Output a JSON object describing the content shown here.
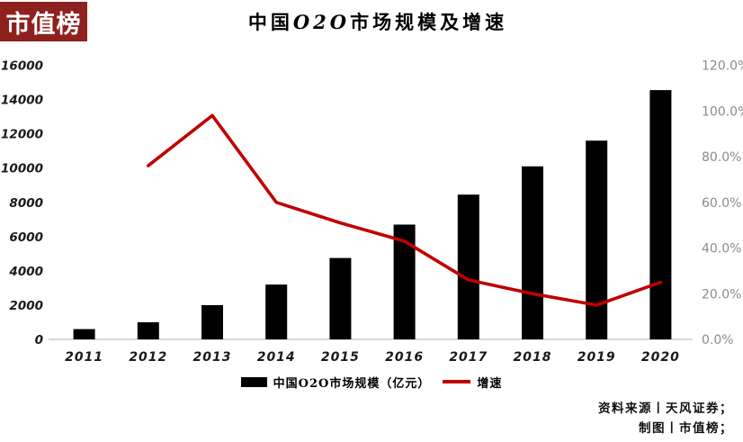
{
  "logo": {
    "text": "市值榜",
    "bg_color": "#8e211d",
    "text_color": "#ffffff"
  },
  "header": {
    "title": "中国O2O市场规模及增速"
  },
  "chart_data": {
    "type": "bar",
    "subtype": "combo-bar-line-dual-axis",
    "title": "中国O2O市场规模及增速",
    "categories": [
      "2011",
      "2012",
      "2013",
      "2014",
      "2015",
      "2016",
      "2017",
      "2018",
      "2019",
      "2020"
    ],
    "series": [
      {
        "name": "中国O2O市场规模（亿元）",
        "type": "bar",
        "axis": "left",
        "color": "#000000",
        "values": [
          600,
          1000,
          2000,
          3200,
          4750,
          6700,
          8450,
          10100,
          11600,
          14550
        ]
      },
      {
        "name": "增速",
        "type": "line",
        "axis": "right",
        "color": "#c00000",
        "values": [
          null,
          0.76,
          0.98,
          0.6,
          0.51,
          0.43,
          0.26,
          0.2,
          0.15,
          0.25
        ]
      }
    ],
    "left_axis": {
      "min": 0,
      "max": 16000,
      "step": 2000,
      "tick_labels": [
        "0",
        "2000",
        "4000",
        "6000",
        "8000",
        "10000",
        "12000",
        "14000",
        "16000"
      ]
    },
    "right_axis": {
      "min": 0,
      "max": 1.2,
      "step": 0.2,
      "tick_labels": [
        "0.0%",
        "20.0%",
        "40.0%",
        "60.0%",
        "80.0%",
        "100.0%",
        "120.0%"
      ]
    },
    "grid": false,
    "legend_position": "bottom"
  },
  "footer": {
    "source_line": "资料来源丨天风证券；",
    "credit_line": "制图丨市值榜；"
  },
  "colors": {
    "bar": "#000000",
    "line": "#c00000",
    "left_tick": "#1a1a1a",
    "right_tick": "#8c8c8c",
    "baseline": "#d9d9d9"
  }
}
